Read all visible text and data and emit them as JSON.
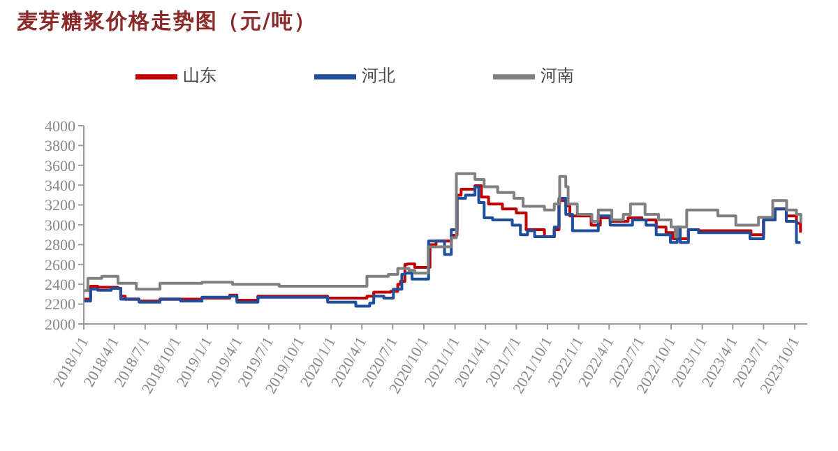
{
  "chart_data": {
    "type": "step",
    "title": "麦芽糖浆价格走势图（元/吨）",
    "legend": "top",
    "marker": "none",
    "grid": false,
    "xlim": [
      "2018-01-01",
      "2023-11-07"
    ],
    "xticks": [
      {
        "value": "2018-01-01",
        "label": "2018/1/1"
      },
      {
        "value": "2018-04-01",
        "label": "2018/4/1"
      },
      {
        "value": "2018-07-01",
        "label": "2018/7/1"
      },
      {
        "value": "2018-10-01",
        "label": "2018/10/1"
      },
      {
        "value": "2019-01-01",
        "label": "2019/1/1"
      },
      {
        "value": "2019-04-01",
        "label": "2019/4/1"
      },
      {
        "value": "2019-07-01",
        "label": "2019/7/1"
      },
      {
        "value": "2019-10-01",
        "label": "2019/10/1"
      },
      {
        "value": "2020-01-01",
        "label": "2020/1/1"
      },
      {
        "value": "2020-04-01",
        "label": "2020/4/1"
      },
      {
        "value": "2020-07-01",
        "label": "2020/7/1"
      },
      {
        "value": "2020-10-01",
        "label": "2020/10/1"
      },
      {
        "value": "2021-01-01",
        "label": "2021/1/1"
      },
      {
        "value": "2021-04-01",
        "label": "2021/4/1"
      },
      {
        "value": "2021-07-01",
        "label": "2021/7/1"
      },
      {
        "value": "2021-10-01",
        "label": "2021/10/1"
      },
      {
        "value": "2022-01-01",
        "label": "2022/1/1"
      },
      {
        "value": "2022-04-01",
        "label": "2022/4/1"
      },
      {
        "value": "2022-07-01",
        "label": "2022/7/1"
      },
      {
        "value": "2022-10-01",
        "label": "2022/10/1"
      },
      {
        "value": "2023-01-01",
        "label": "2023/1/1"
      },
      {
        "value": "2023-04-01",
        "label": "2023/4/1"
      },
      {
        "value": "2023-07-01",
        "label": "2023/7/1"
      },
      {
        "value": "2023-10-01",
        "label": "2023/10/1"
      }
    ],
    "ylim": [
      2000,
      4000
    ],
    "yticks": [
      2000,
      2200,
      2400,
      2600,
      2800,
      3000,
      3200,
      3400,
      3600,
      3800,
      4000
    ],
    "series": [
      {
        "name": "山东",
        "color": "#c00000",
        "x": [
          "2018-01-01",
          "2018-01-21",
          "2018-02-11",
          "2018-04-12",
          "2018-04-20",
          "2018-05-03",
          "2018-06-13",
          "2018-08-14",
          "2018-12-16",
          "2019-03-08",
          "2019-03-29",
          "2019-05-30",
          "2019-12-22",
          "2020-04-16",
          "2020-05-06",
          "2020-06-25",
          "2020-07-16",
          "2020-07-24",
          "2020-08-06",
          "2020-08-14",
          "2020-09-04",
          "2020-10-19",
          "2020-11-06",
          "2020-12-21",
          "2021-01-07",
          "2021-01-19",
          "2021-03-01",
          "2021-03-20",
          "2021-04-10",
          "2021-05-21",
          "2021-07-01",
          "2021-07-30",
          "2021-09-22",
          "2021-10-21",
          "2021-11-04",
          "2021-11-24",
          "2021-12-06",
          "2022-02-07",
          "2022-03-06",
          "2022-04-04",
          "2022-05-27",
          "2022-07-07",
          "2022-08-18",
          "2022-09-16",
          "2022-10-07",
          "2022-11-21",
          "2022-12-21",
          "2023-05-25",
          "2023-07-01",
          "2023-08-04",
          "2023-09-06",
          "2023-10-06",
          "2023-10-18"
        ],
        "values": [
          2250,
          2380,
          2370,
          2360,
          2280,
          2250,
          2230,
          2250,
          2260,
          2290,
          2240,
          2280,
          2260,
          2280,
          2320,
          2330,
          2400,
          2430,
          2600,
          2605,
          2570,
          2800,
          2837,
          2895,
          3300,
          3360,
          3395,
          3280,
          3210,
          3160,
          3120,
          2950,
          2880,
          2950,
          3244,
          3190,
          3090,
          2996,
          3070,
          3035,
          3070,
          3050,
          2977,
          2920,
          2860,
          2950,
          2940,
          2900,
          3050,
          3160,
          3090,
          3015,
          2920
        ]
      },
      {
        "name": "河北",
        "color": "#1f4e9c",
        "x": [
          "2018-01-01",
          "2018-01-21",
          "2018-02-11",
          "2018-03-23",
          "2018-04-20",
          "2018-06-13",
          "2018-08-14",
          "2018-10-14",
          "2018-12-16",
          "2019-03-08",
          "2019-03-29",
          "2019-05-30",
          "2019-12-22",
          "2020-03-14",
          "2020-04-24",
          "2020-05-06",
          "2020-06-05",
          "2020-07-03",
          "2020-07-28",
          "2020-08-06",
          "2020-08-27",
          "2020-10-15",
          "2020-11-06",
          "2020-12-01",
          "2020-12-21",
          "2021-01-07",
          "2021-02-01",
          "2021-03-01",
          "2021-03-12",
          "2021-03-28",
          "2021-04-22",
          "2021-06-19",
          "2021-07-13",
          "2021-08-03",
          "2021-08-24",
          "2021-10-21",
          "2021-11-04",
          "2021-11-24",
          "2021-12-14",
          "2022-02-28",
          "2022-04-04",
          "2022-06-09",
          "2022-07-19",
          "2022-08-18",
          "2022-09-29",
          "2022-10-19",
          "2022-10-28",
          "2022-11-21",
          "2022-12-21",
          "2023-05-22",
          "2023-07-01",
          "2023-08-04",
          "2023-09-06",
          "2023-10-06",
          "2023-10-18"
        ],
        "values": [
          2230,
          2350,
          2340,
          2360,
          2250,
          2220,
          2250,
          2230,
          2270,
          2280,
          2220,
          2270,
          2220,
          2180,
          2210,
          2280,
          2260,
          2350,
          2500,
          2512,
          2453,
          2837,
          2837,
          2700,
          2950,
          3267,
          3300,
          3384,
          3226,
          3070,
          3050,
          2996,
          2900,
          2940,
          2880,
          2977,
          3267,
          3105,
          2940,
          3090,
          2996,
          3050,
          2996,
          2900,
          2823,
          2977,
          2823,
          2950,
          2920,
          2860,
          3050,
          3160,
          3035,
          2823,
          2823
        ]
      },
      {
        "name": "河南",
        "color": "#808080",
        "x": [
          "2018-01-01",
          "2018-01-13",
          "2018-02-23",
          "2018-04-12",
          "2018-06-05",
          "2018-08-14",
          "2018-12-16",
          "2019-03-16",
          "2019-08-01",
          "2020-04-16",
          "2020-06-18",
          "2020-07-16",
          "2020-08-18",
          "2020-09-04",
          "2020-10-14",
          "2020-12-21",
          "2021-01-05",
          "2021-03-01",
          "2021-03-28",
          "2021-05-07",
          "2021-06-24",
          "2021-07-21",
          "2021-09-22",
          "2021-10-21",
          "2021-11-06",
          "2021-11-24",
          "2021-12-01",
          "2021-12-28",
          "2022-02-09",
          "2022-02-28",
          "2022-04-09",
          "2022-05-13",
          "2022-06-03",
          "2022-07-16",
          "2022-08-25",
          "2022-10-01",
          "2022-10-13",
          "2022-10-19",
          "2022-11-16",
          "2023-02-16",
          "2023-04-10",
          "2023-06-16",
          "2023-07-28",
          "2023-09-07",
          "2023-10-06",
          "2023-10-19"
        ],
        "values": [
          2337,
          2460,
          2480,
          2410,
          2350,
          2410,
          2420,
          2400,
          2380,
          2480,
          2500,
          2560,
          2540,
          2512,
          2779,
          2870,
          3515,
          3457,
          3384,
          3326,
          3267,
          3186,
          3150,
          3209,
          3488,
          3384,
          3209,
          3105,
          3035,
          3150,
          3050,
          3105,
          3209,
          3105,
          3050,
          2977,
          2880,
          2977,
          3150,
          3090,
          2996,
          3075,
          3244,
          3150,
          3105,
          3015
        ]
      }
    ]
  }
}
